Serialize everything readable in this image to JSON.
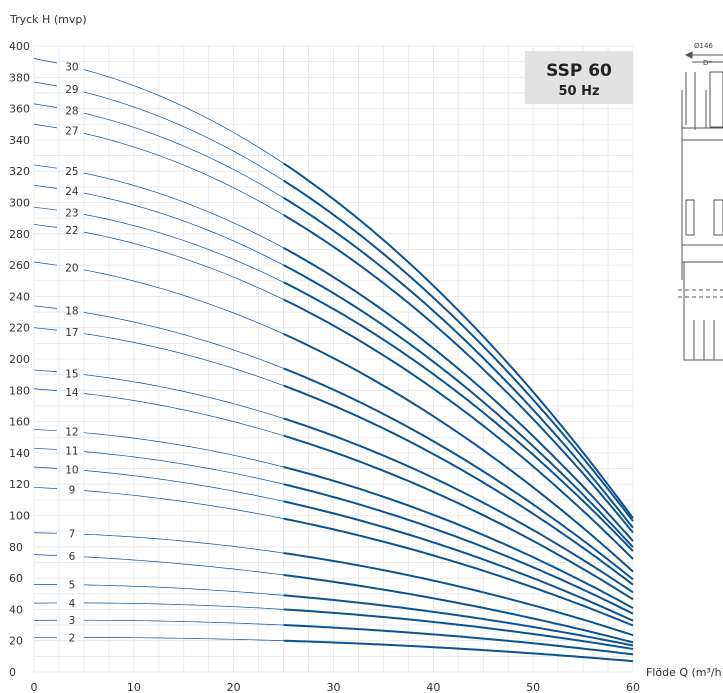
{
  "chart_data": {
    "type": "line",
    "title": "SSP 60",
    "subtitle": "50 Hz",
    "ylabel": "Tryck H (mvp)",
    "xlabel": "Flöde Q (m³/h)",
    "xlim": [
      0,
      60
    ],
    "ylim": [
      0,
      400
    ],
    "x_ticks": [
      "0",
      "10",
      "20",
      "30",
      "40",
      "50",
      "60"
    ],
    "y_ticks": [
      "0",
      "20",
      "40",
      "60",
      "80",
      "100",
      "120",
      "140",
      "160",
      "180",
      "200",
      "220",
      "240",
      "260",
      "280",
      "300",
      "320",
      "340",
      "360",
      "380",
      "400"
    ],
    "grid": true,
    "recommended_range_start_x": 25,
    "series": [
      {
        "name": "2",
        "x": [
          0,
          25,
          60
        ],
        "y": [
          22,
          20,
          6
        ]
      },
      {
        "name": "3",
        "x": [
          0,
          25,
          60
        ],
        "y": [
          33,
          30,
          10
        ]
      },
      {
        "name": "4",
        "x": [
          0,
          25,
          60
        ],
        "y": [
          44,
          40,
          13
        ]
      },
      {
        "name": "5",
        "x": [
          0,
          25,
          60
        ],
        "y": [
          56,
          49,
          16
        ]
      },
      {
        "name": "6",
        "x": [
          0,
          25,
          60
        ],
        "y": [
          75,
          62,
          20
        ]
      },
      {
        "name": "7",
        "x": [
          0,
          25,
          60
        ],
        "y": [
          89,
          76,
          23
        ]
      },
      {
        "name": "9",
        "x": [
          0,
          25,
          60
        ],
        "y": [
          118,
          98,
          31
        ]
      },
      {
        "name": "10",
        "x": [
          0,
          25,
          60
        ],
        "y": [
          131,
          109,
          34
        ]
      },
      {
        "name": "11",
        "x": [
          0,
          25,
          60
        ],
        "y": [
          143,
          120,
          38
        ]
      },
      {
        "name": "12",
        "x": [
          0,
          25,
          60
        ],
        "y": [
          155,
          131,
          41
        ]
      },
      {
        "name": "14",
        "x": [
          0,
          25,
          60
        ],
        "y": [
          181,
          151,
          48
        ]
      },
      {
        "name": "15",
        "x": [
          0,
          25,
          60
        ],
        "y": [
          193,
          162,
          52
        ]
      },
      {
        "name": "17",
        "x": [
          0,
          25,
          60
        ],
        "y": [
          220,
          183,
          58
        ]
      },
      {
        "name": "18",
        "x": [
          0,
          25,
          60
        ],
        "y": [
          234,
          194,
          62
        ]
      },
      {
        "name": "20",
        "x": [
          0,
          25,
          60
        ],
        "y": [
          262,
          216,
          68
        ]
      },
      {
        "name": "22",
        "x": [
          0,
          25,
          60
        ],
        "y": [
          286,
          238,
          75
        ]
      },
      {
        "name": "23",
        "x": [
          0,
          25,
          60
        ],
        "y": [
          297,
          249,
          79
        ]
      },
      {
        "name": "24",
        "x": [
          0,
          25,
          60
        ],
        "y": [
          311,
          260,
          82
        ]
      },
      {
        "name": "25",
        "x": [
          0,
          25,
          60
        ],
        "y": [
          324,
          271,
          86
        ]
      },
      {
        "name": "27",
        "x": [
          0,
          25,
          60
        ],
        "y": [
          350,
          292,
          92
        ]
      },
      {
        "name": "28",
        "x": [
          0,
          25,
          60
        ],
        "y": [
          363,
          303,
          95
        ]
      },
      {
        "name": "29",
        "x": [
          0,
          25,
          60
        ],
        "y": [
          377,
          314,
          100
        ]
      },
      {
        "name": "30",
        "x": [
          0,
          25,
          60
        ],
        "y": [
          392,
          325,
          103
        ]
      }
    ]
  },
  "pump_drawing": {
    "dimension_top": "Ø146",
    "dimension_sub": "D*"
  },
  "colors": {
    "curve": "#0b5393",
    "grid": "#e6e6e6",
    "badge_bg": "#e2e2e2",
    "drawing": "#555555"
  }
}
